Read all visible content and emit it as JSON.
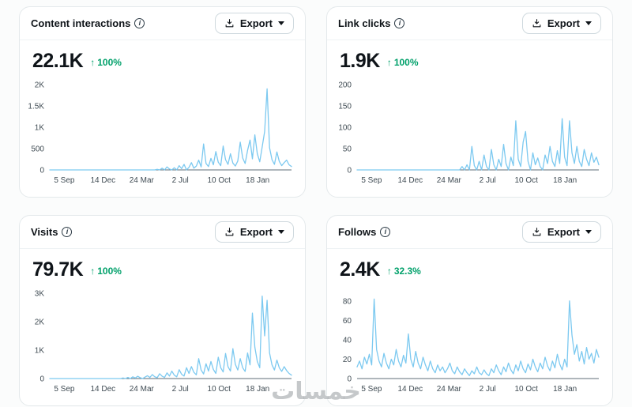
{
  "ui": {
    "export_label": "Export",
    "up_arrow": "↑",
    "info_glyph": "i"
  },
  "colors": {
    "line": "#7cc9f0",
    "up": "#00a06a",
    "title": "#0f1419",
    "axis_text": "#3f4b53",
    "axis_line": "#5f6d77",
    "card_border": "#e4e9eb",
    "background": "#fbfcfc"
  },
  "watermark": "خمسات",
  "chart_data": [
    {
      "type": "line",
      "title": "Content interactions",
      "value": "22.1K",
      "delta": "100%",
      "ylim": [
        0,
        2000
      ],
      "y_ticks": [
        {
          "v": 0,
          "label": "0"
        },
        {
          "v": 500,
          "label": "500"
        },
        {
          "v": 1000,
          "label": "1K"
        },
        {
          "v": 1500,
          "label": "1.5K"
        },
        {
          "v": 2000,
          "label": "2K"
        }
      ],
      "x_ticks": [
        {
          "pos": 0.06,
          "label": "5 Sep"
        },
        {
          "pos": 0.22,
          "label": "14 Dec"
        },
        {
          "pos": 0.38,
          "label": "24 Mar"
        },
        {
          "pos": 0.54,
          "label": "2 Jul"
        },
        {
          "pos": 0.7,
          "label": "10 Oct"
        },
        {
          "pos": 0.86,
          "label": "18 Jan"
        }
      ],
      "values": [
        0,
        0,
        0,
        0,
        0,
        0,
        0,
        0,
        0,
        0,
        0,
        0,
        0,
        0,
        0,
        0,
        0,
        0,
        0,
        0,
        0,
        0,
        0,
        0,
        0,
        0,
        0,
        0,
        0,
        0,
        0,
        0,
        0,
        0,
        0,
        0,
        0,
        0,
        0,
        0,
        0,
        0,
        0,
        0,
        15,
        0,
        40,
        0,
        70,
        20,
        0,
        50,
        0,
        100,
        30,
        130,
        0,
        60,
        170,
        40,
        90,
        230,
        70,
        610,
        150,
        80,
        270,
        120,
        430,
        180,
        100,
        560,
        240,
        130,
        380,
        160,
        90,
        210,
        650,
        280,
        150,
        460,
        700,
        260,
        820,
        380,
        190,
        540,
        900,
        1900,
        520,
        240,
        130,
        420,
        200,
        100,
        170,
        230,
        120,
        80
      ]
    },
    {
      "type": "line",
      "title": "Link clicks",
      "value": "1.9K",
      "delta": "100%",
      "ylim": [
        0,
        200
      ],
      "y_ticks": [
        {
          "v": 0,
          "label": "0"
        },
        {
          "v": 50,
          "label": "50"
        },
        {
          "v": 100,
          "label": "100"
        },
        {
          "v": 150,
          "label": "150"
        },
        {
          "v": 200,
          "label": "200"
        }
      ],
      "x_ticks": [
        {
          "pos": 0.06,
          "label": "5 Sep"
        },
        {
          "pos": 0.22,
          "label": "14 Dec"
        },
        {
          "pos": 0.38,
          "label": "24 Mar"
        },
        {
          "pos": 0.54,
          "label": "2 Jul"
        },
        {
          "pos": 0.7,
          "label": "10 Oct"
        },
        {
          "pos": 0.86,
          "label": "18 Jan"
        }
      ],
      "values": [
        0,
        0,
        0,
        0,
        0,
        0,
        0,
        0,
        0,
        0,
        0,
        0,
        0,
        0,
        0,
        0,
        0,
        0,
        0,
        0,
        0,
        0,
        0,
        0,
        0,
        0,
        0,
        0,
        0,
        0,
        0,
        0,
        0,
        0,
        0,
        0,
        0,
        0,
        0,
        0,
        0,
        0,
        0,
        8,
        0,
        12,
        0,
        55,
        10,
        0,
        20,
        0,
        35,
        8,
        0,
        48,
        12,
        0,
        25,
        8,
        60,
        15,
        0,
        30,
        10,
        115,
        25,
        8,
        65,
        90,
        20,
        0,
        40,
        12,
        28,
        8,
        0,
        35,
        15,
        55,
        20,
        8,
        45,
        15,
        120,
        30,
        10,
        115,
        40,
        15,
        55,
        20,
        8,
        48,
        25,
        10,
        40,
        18,
        30,
        12
      ]
    },
    {
      "type": "line",
      "title": "Visits",
      "value": "79.7K",
      "delta": "100%",
      "ylim": [
        0,
        3000
      ],
      "y_ticks": [
        {
          "v": 0,
          "label": "0"
        },
        {
          "v": 1000,
          "label": "1K"
        },
        {
          "v": 2000,
          "label": "2K"
        },
        {
          "v": 3000,
          "label": "3K"
        }
      ],
      "x_ticks": [
        {
          "pos": 0.06,
          "label": "5 Sep"
        },
        {
          "pos": 0.22,
          "label": "14 Dec"
        },
        {
          "pos": 0.38,
          "label": "24 Mar"
        },
        {
          "pos": 0.54,
          "label": "2 Jul"
        },
        {
          "pos": 0.7,
          "label": "10 Oct"
        },
        {
          "pos": 0.86,
          "label": "18 Jan"
        }
      ],
      "values": [
        0,
        0,
        0,
        0,
        0,
        0,
        0,
        0,
        0,
        0,
        0,
        0,
        0,
        0,
        0,
        0,
        0,
        0,
        0,
        0,
        0,
        0,
        0,
        0,
        0,
        0,
        0,
        0,
        0,
        0,
        20,
        0,
        40,
        0,
        60,
        20,
        80,
        30,
        0,
        50,
        100,
        40,
        140,
        60,
        30,
        170,
        80,
        40,
        200,
        90,
        260,
        120,
        60,
        310,
        150,
        90,
        380,
        180,
        420,
        220,
        130,
        700,
        300,
        160,
        520,
        260,
        600,
        320,
        180,
        750,
        380,
        230,
        880,
        420,
        260,
        1050,
        500,
        300,
        700,
        380,
        250,
        900,
        480,
        2300,
        1100,
        600,
        380,
        2900,
        1500,
        2750,
        900,
        480,
        300,
        650,
        380,
        250,
        420,
        280,
        180,
        120
      ]
    },
    {
      "type": "line",
      "title": "Follows",
      "value": "2.4K",
      "delta": "32.3%",
      "ylim": [
        0,
        88
      ],
      "y_ticks": [
        {
          "v": 0,
          "label": "0"
        },
        {
          "v": 20,
          "label": "20"
        },
        {
          "v": 40,
          "label": "40"
        },
        {
          "v": 60,
          "label": "60"
        },
        {
          "v": 80,
          "label": "80"
        }
      ],
      "x_ticks": [
        {
          "pos": 0.06,
          "label": "5 Sep"
        },
        {
          "pos": 0.22,
          "label": "14 Dec"
        },
        {
          "pos": 0.38,
          "label": "24 Mar"
        },
        {
          "pos": 0.54,
          "label": "2 Jul"
        },
        {
          "pos": 0.7,
          "label": "10 Oct"
        },
        {
          "pos": 0.86,
          "label": "18 Jan"
        }
      ],
      "values": [
        12,
        18,
        10,
        22,
        15,
        25,
        14,
        82,
        30,
        18,
        12,
        26,
        16,
        10,
        20,
        14,
        30,
        18,
        12,
        24,
        16,
        46,
        20,
        12,
        28,
        16,
        10,
        22,
        14,
        8,
        18,
        10,
        6,
        14,
        8,
        12,
        6,
        10,
        16,
        8,
        5,
        12,
        7,
        4,
        10,
        6,
        3,
        8,
        5,
        12,
        6,
        4,
        9,
        5,
        3,
        10,
        6,
        14,
        8,
        4,
        12,
        7,
        16,
        9,
        5,
        14,
        8,
        18,
        10,
        6,
        15,
        9,
        20,
        12,
        7,
        16,
        10,
        22,
        13,
        8,
        18,
        11,
        25,
        15,
        9,
        20,
        12,
        80,
        45,
        25,
        35,
        18,
        28,
        15,
        32,
        20,
        26,
        16,
        30,
        22
      ]
    }
  ]
}
